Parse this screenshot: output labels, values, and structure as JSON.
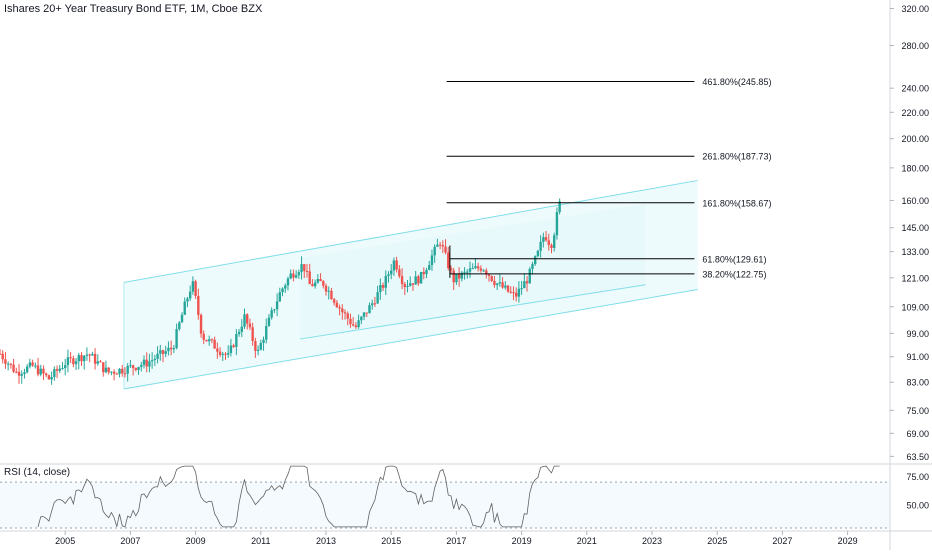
{
  "header": {
    "symbol_title": "Ishares 20+ Year Treasury Bond ETF, 1M, Cboe BZX",
    "rsi_title": "RSI (14, close)"
  },
  "colors": {
    "up": "#26a69a",
    "down": "#ef5350",
    "channel_line": "#80deea",
    "channel_fill": "#e0f7fa",
    "fib_line": "#000000",
    "rsi_line": "#616161",
    "axis_text": "#131722",
    "grid": "#e0e3eb"
  },
  "chart_data": [
    {
      "type": "candlestick",
      "title": "Ishares 20+ Year Treasury Bond ETF, 1M, Cboe BZX",
      "y_scale": "log",
      "ylim": [
        62.0,
        330.0
      ],
      "xlim": [
        2003.0,
        2030.3
      ],
      "y_ticks": [
        "320.00",
        "280.00",
        "240.00",
        "220.00",
        "200.00",
        "180.00",
        "160.00",
        "145.00",
        "133.00",
        "121.00",
        "109.00",
        "99.00",
        "91.00",
        "83.00",
        "75.00",
        "69.00",
        "63.50"
      ],
      "x_ticks": [
        "2005",
        "2007",
        "2009",
        "2011",
        "2013",
        "2015",
        "2017",
        "2019",
        "2021",
        "2023",
        "2025",
        "2027",
        "2029"
      ],
      "series": [],
      "fib_levels": [
        {
          "label": "461.80%(245.85)",
          "value": 245.85
        },
        {
          "label": "261.80%(187.73)",
          "value": 187.73
        },
        {
          "label": "161.80%(158.67)",
          "value": 158.67
        },
        {
          "label": "61.80%(129.61)",
          "value": 129.61
        },
        {
          "label": "38.20%(122.75)",
          "value": 122.75
        }
      ],
      "channel": {
        "start_year": 2006.8,
        "end_year": 2024.4,
        "upper_start": 119,
        "upper_end": 172,
        "lower_start": 81,
        "lower_end": 116
      }
    },
    {
      "type": "line",
      "title": "RSI (14, close)",
      "ylim": [
        30,
        85
      ],
      "y_ticks": [
        "75.00",
        "50.00"
      ],
      "bands": [
        70,
        30
      ]
    }
  ]
}
